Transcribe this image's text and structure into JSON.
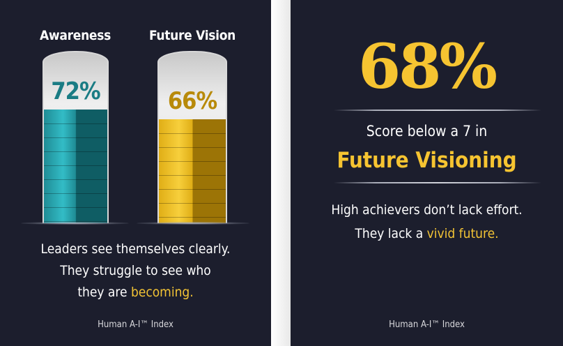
{
  "chart_data": {
    "type": "bar",
    "categories": [
      "Awareness",
      "Future Vision"
    ],
    "values": [
      72,
      66
    ],
    "value_labels": [
      "72%",
      "66%"
    ],
    "ylim": [
      0,
      100
    ],
    "colors": [
      "#1f8c95",
      "#e0ae16"
    ],
    "text_colors": [
      "#1a7c84",
      "#b88a0a"
    ]
  },
  "left": {
    "caption_line1": "Leaders see themselves clearly.",
    "caption_line2": "They struggle to see who",
    "caption_line3_pre": "they are ",
    "caption_line3_hl": "becoming.",
    "footer": "Human A-I™ Index"
  },
  "right": {
    "big_stat": "68%",
    "subtitle": "Score below a 7 in",
    "highlight": "Future Visioning",
    "body_line1": "High achievers don’t lack effort.",
    "body_line2_pre": "They lack a ",
    "body_line2_hl": "vivid future.",
    "footer": "Human A-I™ Index"
  },
  "colors": {
    "background": "#1c1e2d",
    "accent": "#f6c431",
    "teal": "#1f8c95"
  }
}
